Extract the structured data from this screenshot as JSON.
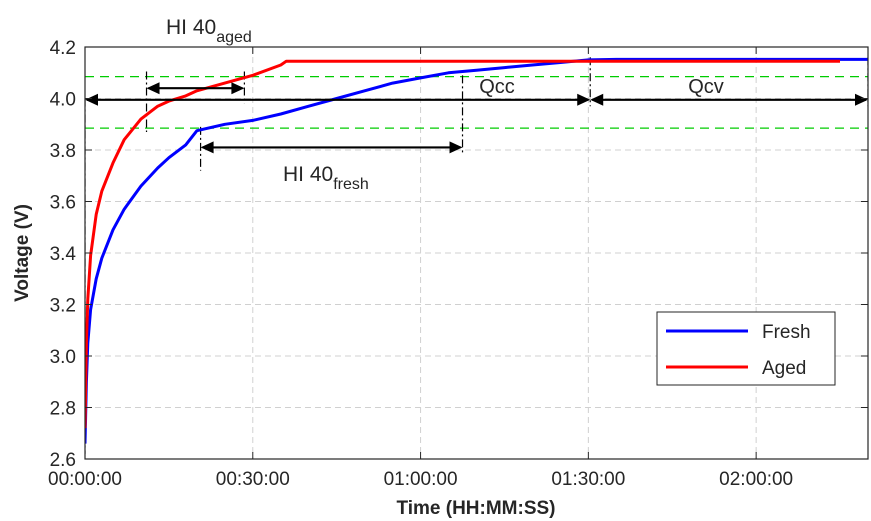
{
  "chart_data": {
    "type": "line",
    "xlabel": "Time (HH:MM:SS)",
    "ylabel": "Voltage (V)",
    "xlim": [
      0,
      8400
    ],
    "ylim": [
      2.6,
      4.2
    ],
    "x_ticks": [
      0,
      1800,
      3600,
      5400,
      7200
    ],
    "x_tick_labels": [
      "00:00:00",
      "00:30:00",
      "01:00:00",
      "01:30:00",
      "02:00:00"
    ],
    "y_ticks": [
      2.6,
      2.8,
      3.0,
      3.2,
      3.4,
      3.6,
      3.8,
      4.0,
      4.2
    ],
    "y_tick_labels": [
      "2.6",
      "2.8",
      "3.0",
      "3.2",
      "3.4",
      "3.6",
      "3.8",
      "4.0",
      "4.2"
    ],
    "grid": true,
    "legend_position": "bottom-right",
    "series": [
      {
        "name": "Fresh",
        "color": "#0000ff",
        "x": [
          0,
          15,
          30,
          60,
          120,
          180,
          300,
          420,
          600,
          780,
          900,
          1080,
          1200,
          1500,
          1800,
          2100,
          2400,
          2700,
          3000,
          3300,
          3600,
          3900,
          4200,
          4500,
          4800,
          5100,
          5400,
          5700,
          6000,
          6300,
          6600,
          6900,
          7200,
          7500,
          7800,
          8100,
          8400
        ],
        "y": [
          2.66,
          2.9,
          3.05,
          3.18,
          3.3,
          3.38,
          3.49,
          3.57,
          3.66,
          3.73,
          3.77,
          3.82,
          3.875,
          3.9,
          3.915,
          3.94,
          3.97,
          4.0,
          4.03,
          4.06,
          4.08,
          4.1,
          4.11,
          4.12,
          4.13,
          4.14,
          4.15,
          4.152,
          4.152,
          4.152,
          4.152,
          4.152,
          4.152,
          4.152,
          4.152,
          4.152,
          4.152
        ]
      },
      {
        "name": "Aged",
        "color": "#ff0000",
        "x": [
          0,
          15,
          30,
          60,
          120,
          180,
          300,
          420,
          600,
          780,
          900,
          1080,
          1200,
          1500,
          1800,
          2100,
          2160,
          2400,
          2700,
          3000,
          3300,
          3600,
          3900,
          4200,
          4500,
          4800,
          5100,
          5400,
          5700,
          6000,
          6300,
          6600,
          6900,
          7200,
          7500,
          7800,
          8100
        ],
        "y": [
          2.72,
          3.05,
          3.22,
          3.39,
          3.55,
          3.64,
          3.75,
          3.84,
          3.92,
          3.97,
          3.99,
          4.01,
          4.03,
          4.06,
          4.09,
          4.13,
          4.145,
          4.145,
          4.145,
          4.145,
          4.145,
          4.145,
          4.145,
          4.145,
          4.145,
          4.145,
          4.145,
          4.145,
          4.145,
          4.145,
          4.145,
          4.145,
          4.145,
          4.145,
          4.145,
          4.145,
          4.145
        ]
      }
    ],
    "reference_lines": {
      "horizontal_dashed_green": [
        4.085,
        3.885
      ],
      "color": "#00cc00",
      "vertical_dashdot": [
        0,
        660,
        1240,
        1710,
        4050,
        5420,
        8400
      ]
    },
    "annotations": [
      {
        "id": "hi40-aged",
        "text_main": "HI 40",
        "text_sub": "aged",
        "x_from": 660,
        "x_to": 1710,
        "y": 4.04
      },
      {
        "id": "hi40-fresh",
        "text_main": "HI 40",
        "text_sub": "fresh",
        "x_from": 1240,
        "x_to": 4050,
        "y": 3.81
      },
      {
        "id": "qcc",
        "text": "Qcc",
        "x_from": 0,
        "x_to": 5420,
        "y": 3.995
      },
      {
        "id": "qcv",
        "text": "Qcv",
        "x_from": 5420,
        "x_to": 8400,
        "y": 3.995
      }
    ]
  }
}
